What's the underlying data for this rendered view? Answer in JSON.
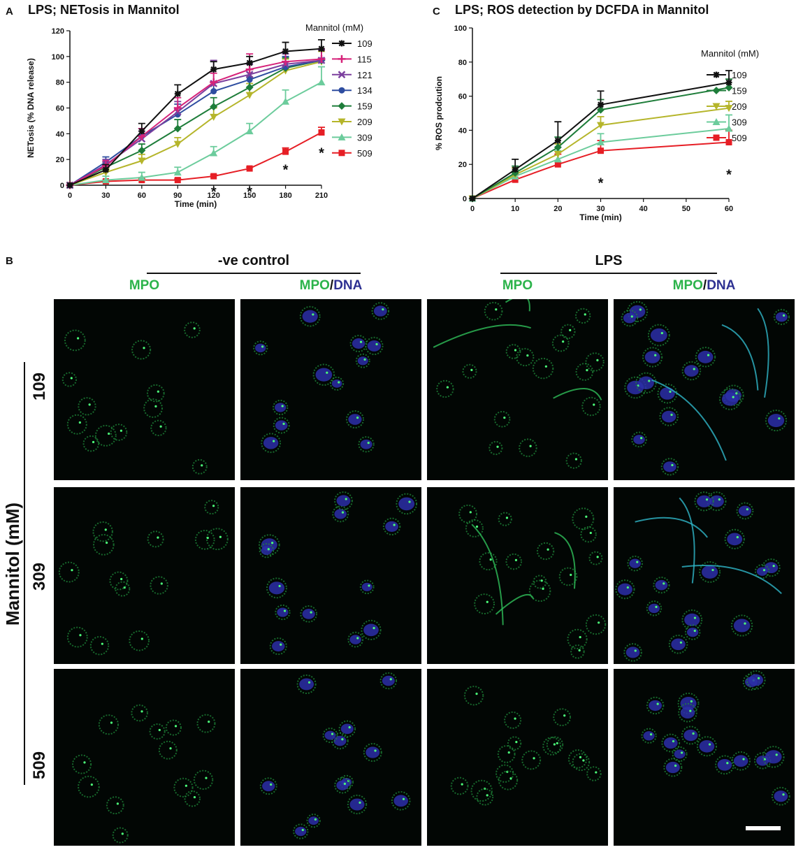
{
  "panels": {
    "a_letter": "A",
    "b_letter": "B",
    "c_letter": "C"
  },
  "chart_data": [
    {
      "type": "line",
      "title": "LPS; NETosis in Mannitol",
      "xlabel": "Time (min)",
      "ylabel": "NETosis (% DNA release)",
      "xlim": [
        0,
        210
      ],
      "ylim": [
        0,
        120
      ],
      "x_ticks": [
        "0",
        "30",
        "60",
        "90",
        "120",
        "150",
        "180",
        "210"
      ],
      "y_ticks": [
        "0",
        "20",
        "40",
        "60",
        "80",
        "100",
        "120"
      ],
      "legend_title": "Mannitol (mM)",
      "legend_position": "right",
      "x": [
        0,
        30,
        60,
        90,
        120,
        150,
        180,
        210
      ],
      "series": [
        {
          "name": "109",
          "color": "#111111",
          "marker": "star",
          "values": [
            0,
            12,
            42,
            71,
            90,
            95,
            104,
            106
          ],
          "err": [
            0,
            4,
            6,
            7,
            6,
            5,
            7,
            7
          ]
        },
        {
          "name": "115",
          "color": "#d6237a",
          "marker": "plus",
          "values": [
            0,
            15,
            38,
            60,
            80,
            90,
            96,
            98
          ],
          "err": [
            0,
            4,
            6,
            8,
            7,
            12,
            8,
            8
          ]
        },
        {
          "name": "121",
          "color": "#7b3f9e",
          "marker": "x",
          "values": [
            0,
            16,
            36,
            57,
            79,
            86,
            94,
            97
          ],
          "err": [
            0,
            4,
            6,
            8,
            18,
            8,
            8,
            8
          ]
        },
        {
          "name": "134",
          "color": "#2e4da0",
          "marker": "circle",
          "values": [
            0,
            18,
            38,
            55,
            73,
            82,
            92,
            97
          ],
          "err": [
            0,
            4,
            6,
            8,
            7,
            8,
            8,
            8
          ]
        },
        {
          "name": "159",
          "color": "#1e7d3a",
          "marker": "diamond",
          "values": [
            0,
            14,
            27,
            44,
            61,
            76,
            91,
            97
          ],
          "err": [
            0,
            4,
            5,
            7,
            7,
            8,
            8,
            8
          ]
        },
        {
          "name": "209",
          "color": "#b5b52a",
          "marker": "triangle-down",
          "values": [
            0,
            10,
            19,
            32,
            53,
            70,
            89,
            96
          ],
          "err": [
            0,
            3,
            5,
            5,
            7,
            9,
            9,
            8
          ]
        },
        {
          "name": "309",
          "color": "#6ccc9c",
          "marker": "triangle-up",
          "values": [
            0,
            4,
            6,
            10,
            25,
            42,
            65,
            80
          ],
          "err": [
            0,
            3,
            4,
            4,
            5,
            6,
            9,
            12
          ]
        },
        {
          "name": "509",
          "color": "#e61e25",
          "marker": "square",
          "values": [
            0,
            3,
            4,
            4,
            7,
            13,
            26,
            41
          ],
          "err": [
            0,
            1,
            1,
            1,
            1,
            1,
            3,
            4
          ]
        }
      ],
      "annotations": [
        {
          "x": 120,
          "y": -1,
          "text": "*"
        },
        {
          "x": 150,
          "y": -1,
          "text": "*"
        },
        {
          "x": 180,
          "y": 16,
          "text": "*"
        },
        {
          "x": 210,
          "y": 29,
          "text": "*"
        }
      ],
      "grid": false
    },
    {
      "type": "line",
      "title": "LPS; ROS detection by DCFDA in Mannitol",
      "xlabel": "Time (min)",
      "ylabel": "% ROS prodcution",
      "xlim": [
        0,
        60
      ],
      "ylim": [
        0,
        100
      ],
      "x_ticks": [
        "0",
        "10",
        "20",
        "30",
        "40",
        "50",
        "60"
      ],
      "y_ticks": [
        "0",
        "20",
        "40",
        "60",
        "80",
        "100"
      ],
      "legend_title": "Mannitol (mM)",
      "legend_position": "right",
      "x": [
        0,
        10,
        20,
        30,
        60
      ],
      "series": [
        {
          "name": "109",
          "color": "#111111",
          "marker": "star",
          "values": [
            0,
            17,
            34,
            55,
            68
          ],
          "err": [
            0,
            6,
            11,
            8,
            7
          ]
        },
        {
          "name": "159",
          "color": "#1e7d3a",
          "marker": "diamond",
          "values": [
            0,
            15,
            30,
            52,
            65
          ],
          "err": [
            0,
            4,
            6,
            6,
            5
          ]
        },
        {
          "name": "209",
          "color": "#b5b52a",
          "marker": "triangle-down",
          "values": [
            0,
            14,
            26,
            43,
            53
          ],
          "err": [
            0,
            4,
            6,
            5,
            4
          ]
        },
        {
          "name": "309",
          "color": "#6ccc9c",
          "marker": "triangle-up",
          "values": [
            0,
            13,
            23,
            33,
            41
          ],
          "err": [
            0,
            3,
            5,
            5,
            8
          ]
        },
        {
          "name": "509",
          "color": "#e61e25",
          "marker": "square",
          "values": [
            0,
            11,
            20,
            28,
            33
          ],
          "err": [
            0,
            3,
            6,
            6,
            7
          ]
        }
      ],
      "annotations": [
        {
          "x": 30,
          "y": 12,
          "text": "*"
        },
        {
          "x": 60,
          "y": 17,
          "text": "*"
        }
      ],
      "grid": false
    }
  ],
  "panel_b": {
    "header_control": "-ve control",
    "header_lps": "LPS",
    "chan_mpo": "MPO",
    "chan_dna": "DNA",
    "chan_sep": "/",
    "side_title": "Mannitol (mM)",
    "rows": [
      "109",
      "309",
      "509"
    ]
  }
}
